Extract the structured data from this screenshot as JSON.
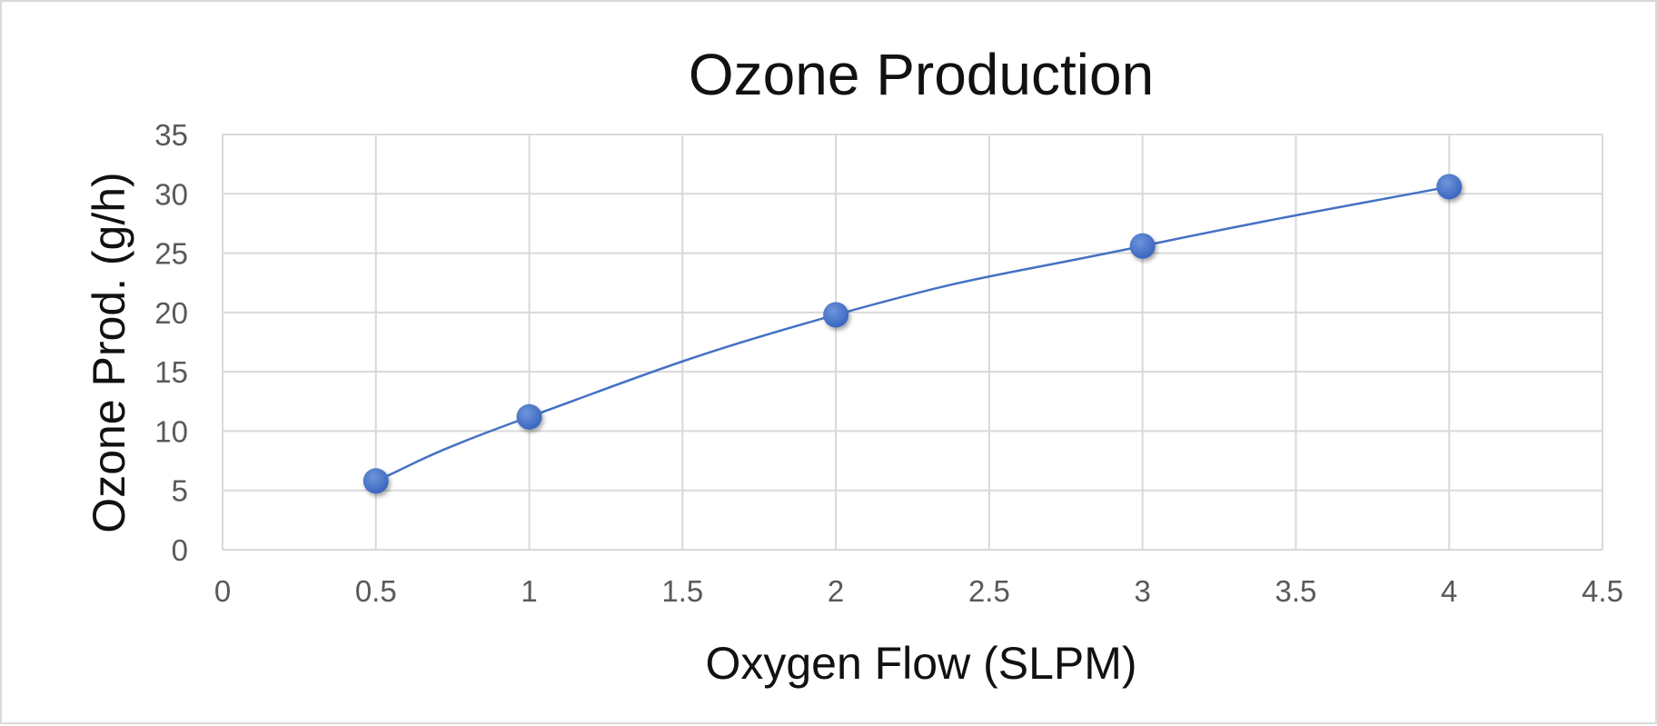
{
  "chart_data": {
    "type": "scatter",
    "title": "Ozone Production",
    "xlabel": "Oxygen Flow (SLPM)",
    "ylabel": "Ozone Prod. (g/h)",
    "xlim": [
      0,
      4.5
    ],
    "ylim": [
      0,
      35
    ],
    "x_ticks": [
      "0",
      "0.5",
      "1",
      "1.5",
      "2",
      "2.5",
      "3",
      "3.5",
      "4",
      "4.5"
    ],
    "y_ticks": [
      "0",
      "5",
      "10",
      "15",
      "20",
      "25",
      "30",
      "35"
    ],
    "grid": true,
    "marker_style": "circle with smoothed connecting line",
    "series": [
      {
        "color": "#4472C4",
        "x": [
          0.5,
          1,
          2,
          3,
          4
        ],
        "y": [
          5.8,
          11.2,
          19.8,
          25.6,
          30.6
        ]
      }
    ]
  }
}
